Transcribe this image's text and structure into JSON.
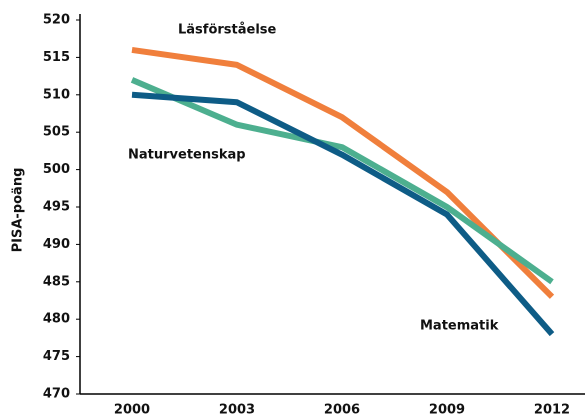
{
  "chart_data": {
    "type": "line",
    "ylabel": "PISA-poäng",
    "categories": [
      "2000",
      "2003",
      "2006",
      "2009",
      "2012"
    ],
    "series": [
      {
        "name": "Läsförståelse",
        "color": "#f07f3c",
        "values": [
          516,
          514,
          507,
          497,
          483
        ]
      },
      {
        "name": "Naturvetenskap",
        "color": "#4daf8f",
        "values": [
          512,
          506,
          503,
          495,
          485
        ]
      },
      {
        "name": "Matematik",
        "color": "#0e5c86",
        "values": [
          510,
          509,
          502,
          494,
          478
        ]
      }
    ],
    "ylim": [
      470,
      520
    ],
    "yticks": [
      470,
      475,
      480,
      485,
      490,
      495,
      500,
      505,
      510,
      515,
      520
    ],
    "grid": false
  }
}
